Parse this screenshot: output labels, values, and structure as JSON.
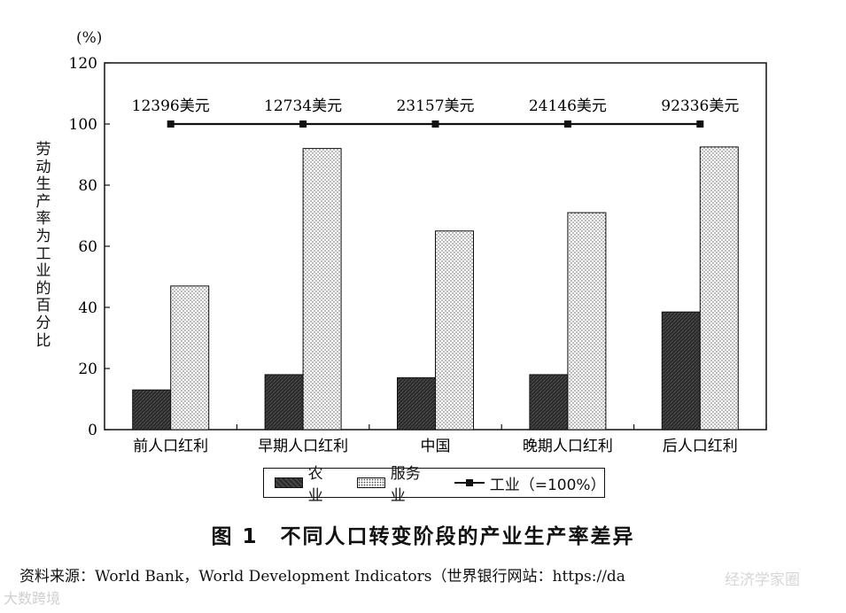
{
  "chart_data": {
    "type": "bar",
    "title": "",
    "unit_label": "(%)",
    "ylabel": "劳动生产率为工业的百分比",
    "ylim": [
      0,
      120
    ],
    "yticks": [
      0,
      20,
      40,
      60,
      80,
      100,
      120
    ],
    "categories": [
      "前人口红利",
      "早期人口红利",
      "中国",
      "晚期人口红利",
      "后人口红利"
    ],
    "series": [
      {
        "name": "农业",
        "values": [
          13,
          18,
          17,
          18,
          38.5
        ],
        "pattern": "dark"
      },
      {
        "name": "服务业",
        "values": [
          47,
          92,
          65,
          71,
          92.5
        ],
        "pattern": "dotted"
      }
    ],
    "line": {
      "name": "工业（=100%）",
      "value": 100
    },
    "line_labels": [
      "12396美元",
      "12734美元",
      "23157美元",
      "24146美元",
      "92336美元"
    ],
    "legend_position": "bottom"
  },
  "caption": "图 1　不同人口转变阶段的产业生产率差异",
  "source": "资料来源：World Bank，World Development Indicators（世界银行网站：https://da",
  "watermarks": {
    "bottom_left": "大数跨境",
    "bottom_right": "经济学家圈"
  },
  "colors": {
    "dark_bar": "#2b2b2b",
    "frame": "#111111"
  }
}
